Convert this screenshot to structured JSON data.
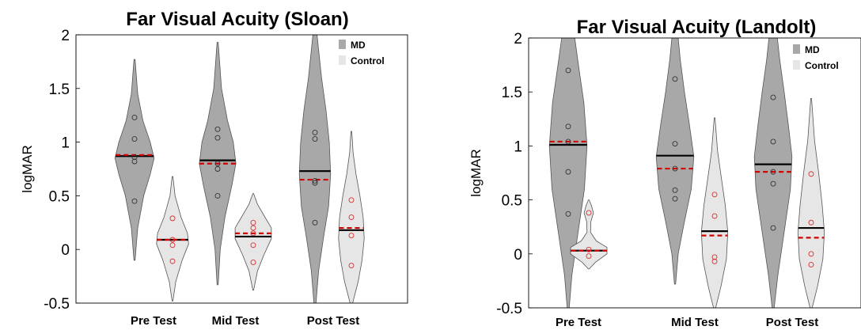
{
  "chart_data": [
    {
      "type": "violin",
      "title": "Far Visual Acuity (Sloan)",
      "ylabel": "logMAR",
      "ylim": [
        -0.5,
        2
      ],
      "yticks": [
        "-0.5",
        "0",
        "0.5",
        "1",
        "1.5",
        "2"
      ],
      "ytick_values": [
        -0.5,
        0,
        0.5,
        1,
        1.5,
        2
      ],
      "categories": [
        "Pre  Test",
        "Mid Test",
        "Post Test"
      ],
      "legend": {
        "placement": "top-right",
        "entries": [
          {
            "label": "MD",
            "color": "#a8a8a8"
          },
          {
            "label": "Control",
            "color": "#e6e6e6"
          }
        ]
      },
      "series": [
        {
          "name": "MD",
          "color": "#a8a8a8",
          "groups": [
            {
              "min": -0.1,
              "max": 1.77,
              "mean": 0.87,
              "median": 0.88,
              "points": [
                0.45,
                0.82,
                0.86,
                1.03,
                1.23
              ],
              "density": [
                [
                  -0.1,
                  0.02
                ],
                [
                  0.2,
                  0.12
                ],
                [
                  0.5,
                  0.35
                ],
                [
                  0.7,
                  0.6
                ],
                [
                  0.85,
                  0.75
                ],
                [
                  1.0,
                  0.6
                ],
                [
                  1.2,
                  0.32
                ],
                [
                  1.45,
                  0.12
                ],
                [
                  1.77,
                  0.02
                ]
              ]
            },
            {
              "min": -0.33,
              "max": 1.93,
              "mean": 0.83,
              "median": 0.8,
              "points": [
                0.5,
                0.75,
                0.8,
                1.04,
                1.12
              ],
              "density": [
                [
                  -0.33,
                  0.02
                ],
                [
                  0.0,
                  0.1
                ],
                [
                  0.3,
                  0.28
                ],
                [
                  0.6,
                  0.55
                ],
                [
                  0.8,
                  0.7
                ],
                [
                  1.0,
                  0.6
                ],
                [
                  1.2,
                  0.38
                ],
                [
                  1.5,
                  0.15
                ],
                [
                  1.93,
                  0.02
                ]
              ]
            },
            {
              "min": -0.5,
              "max": 2.0,
              "mean": 0.73,
              "median": 0.65,
              "points": [
                0.25,
                0.62,
                0.64,
                1.03,
                1.09
              ],
              "density": [
                [
                  -0.5,
                  0.04
                ],
                [
                  -0.2,
                  0.14
                ],
                [
                  0.1,
                  0.32
                ],
                [
                  0.4,
                  0.52
                ],
                [
                  0.7,
                  0.6
                ],
                [
                  1.0,
                  0.55
                ],
                [
                  1.3,
                  0.42
                ],
                [
                  1.6,
                  0.25
                ],
                [
                  2.0,
                  0.08
                ]
              ]
            }
          ]
        },
        {
          "name": "Control",
          "color": "#e6e6e6",
          "groups": [
            {
              "min": -0.48,
              "max": 0.68,
              "mean": 0.09,
              "median": 0.09,
              "points": [
                -0.11,
                0.04,
                0.09,
                0.29
              ],
              "density": [
                [
                  -0.48,
                  0.02
                ],
                [
                  -0.3,
                  0.15
                ],
                [
                  -0.1,
                  0.45
                ],
                [
                  0.05,
                  0.75
                ],
                [
                  0.15,
                  0.7
                ],
                [
                  0.3,
                  0.4
                ],
                [
                  0.5,
                  0.12
                ],
                [
                  0.68,
                  0.02
                ]
              ]
            },
            {
              "min": -0.38,
              "max": 0.52,
              "mean": 0.12,
              "median": 0.15,
              "points": [
                -0.12,
                0.04,
                0.15,
                0.2,
                0.25
              ],
              "density": [
                [
                  -0.38,
                  0.02
                ],
                [
                  -0.2,
                  0.2
                ],
                [
                  -0.05,
                  0.5
                ],
                [
                  0.1,
                  0.85
                ],
                [
                  0.2,
                  0.85
                ],
                [
                  0.3,
                  0.55
                ],
                [
                  0.42,
                  0.2
                ],
                [
                  0.52,
                  0.02
                ]
              ]
            },
            {
              "min": -0.5,
              "max": 1.1,
              "mean": 0.18,
              "median": 0.2,
              "points": [
                -0.15,
                0.13,
                0.3,
                0.46
              ],
              "density": [
                [
                  -0.5,
                  0.06
                ],
                [
                  -0.3,
                  0.32
                ],
                [
                  -0.1,
                  0.5
                ],
                [
                  0.1,
                  0.6
                ],
                [
                  0.3,
                  0.55
                ],
                [
                  0.5,
                  0.4
                ],
                [
                  0.7,
                  0.22
                ],
                [
                  0.9,
                  0.08
                ],
                [
                  1.1,
                  0.02
                ]
              ]
            }
          ]
        }
      ]
    },
    {
      "type": "violin",
      "title": "Far Visual Acuity (Landolt)",
      "ylabel": "logMAR",
      "ylim": [
        -0.5,
        2
      ],
      "yticks": [
        "-0.5",
        "0",
        "0.5",
        "1",
        "1.5",
        "2"
      ],
      "ytick_values": [
        -0.5,
        0,
        0.5,
        1,
        1.5,
        2
      ],
      "categories": [
        "Pre  Test",
        "Mid Test",
        "Post Test"
      ],
      "legend": {
        "placement": "top-right",
        "entries": [
          {
            "label": "MD",
            "color": "#a8a8a8"
          },
          {
            "label": "Control",
            "color": "#e6e6e6"
          }
        ]
      },
      "series": [
        {
          "name": "MD",
          "color": "#a8a8a8",
          "groups": [
            {
              "min": -0.5,
              "max": 2.0,
              "mean": 1.01,
              "median": 1.04,
              "points": [
                0.37,
                0.76,
                1.04,
                1.18,
                1.7
              ],
              "density": [
                [
                  -0.5,
                  0.04
                ],
                [
                  -0.2,
                  0.14
                ],
                [
                  0.2,
                  0.38
                ],
                [
                  0.6,
                  0.62
                ],
                [
                  1.0,
                  0.72
                ],
                [
                  1.4,
                  0.6
                ],
                [
                  1.7,
                  0.42
                ],
                [
                  2.0,
                  0.25
                ]
              ]
            },
            {
              "min": -0.28,
              "max": 2.0,
              "mean": 0.91,
              "median": 0.79,
              "points": [
                0.51,
                0.59,
                0.79,
                1.02,
                1.62
              ],
              "density": [
                [
                  -0.28,
                  0.02
                ],
                [
                  0.0,
                  0.12
                ],
                [
                  0.3,
                  0.36
                ],
                [
                  0.6,
                  0.62
                ],
                [
                  0.9,
                  0.72
                ],
                [
                  1.2,
                  0.55
                ],
                [
                  1.5,
                  0.36
                ],
                [
                  1.8,
                  0.2
                ],
                [
                  2.0,
                  0.12
                ]
              ]
            },
            {
              "min": -0.5,
              "max": 2.0,
              "mean": 0.83,
              "median": 0.76,
              "points": [
                0.24,
                0.65,
                0.76,
                1.04,
                1.45
              ],
              "density": [
                [
                  -0.5,
                  0.04
                ],
                [
                  -0.2,
                  0.18
                ],
                [
                  0.2,
                  0.42
                ],
                [
                  0.6,
                  0.66
                ],
                [
                  0.9,
                  0.72
                ],
                [
                  1.2,
                  0.58
                ],
                [
                  1.5,
                  0.42
                ],
                [
                  1.8,
                  0.25
                ],
                [
                  2.0,
                  0.16
                ]
              ]
            }
          ]
        },
        {
          "name": "Control",
          "color": "#e6e6e6",
          "groups": [
            {
              "min": -0.14,
              "max": 0.5,
              "mean": 0.03,
              "median": 0.03,
              "points": [
                -0.02,
                0.04,
                0.38
              ],
              "density": [
                [
                  -0.14,
                  0.02
                ],
                [
                  -0.08,
                  0.3
                ],
                [
                  0.0,
                  0.85
                ],
                [
                  0.06,
                  0.85
                ],
                [
                  0.12,
                  0.35
                ],
                [
                  0.2,
                  0.08
                ],
                [
                  0.3,
                  0.1
                ],
                [
                  0.38,
                  0.22
                ],
                [
                  0.45,
                  0.12
                ],
                [
                  0.5,
                  0.02
                ]
              ]
            },
            {
              "min": -0.5,
              "max": 1.26,
              "mean": 0.21,
              "median": 0.17,
              "points": [
                -0.07,
                -0.03,
                0.35,
                0.55
              ],
              "density": [
                [
                  -0.5,
                  0.05
                ],
                [
                  -0.3,
                  0.3
                ],
                [
                  -0.05,
                  0.55
                ],
                [
                  0.2,
                  0.62
                ],
                [
                  0.45,
                  0.5
                ],
                [
                  0.7,
                  0.32
                ],
                [
                  0.95,
                  0.14
                ],
                [
                  1.26,
                  0.02
                ]
              ]
            },
            {
              "min": -0.5,
              "max": 1.44,
              "mean": 0.24,
              "median": 0.15,
              "points": [
                -0.1,
                0.0,
                0.29,
                0.74
              ],
              "density": [
                [
                  -0.5,
                  0.05
                ],
                [
                  -0.3,
                  0.3
                ],
                [
                  -0.05,
                  0.55
                ],
                [
                  0.2,
                  0.62
                ],
                [
                  0.45,
                  0.52
                ],
                [
                  0.75,
                  0.35
                ],
                [
                  1.05,
                  0.16
                ],
                [
                  1.44,
                  0.02
                ]
              ]
            }
          ]
        }
      ]
    }
  ]
}
